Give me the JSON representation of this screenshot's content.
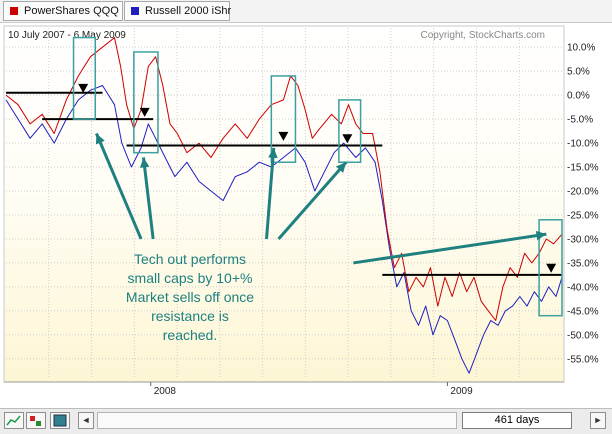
{
  "legend": {
    "series": [
      {
        "label": "PowerShares QQQ",
        "color": "#cc0000"
      },
      {
        "label": "Russell 2000 iShr",
        "color": "#1f1fbf"
      }
    ]
  },
  "chart_data": {
    "type": "line",
    "title": "10 July 2007 - 6 May 2009",
    "watermark": "Copyright, StockCharts.com",
    "ylim": [
      -59,
      14
    ],
    "yticks": [
      "10.0%",
      "5.0%",
      "0.0%",
      "-5.0%",
      "-10.0%",
      "-15.0%",
      "-20.0%",
      "-25.0%",
      "-30.0%",
      "-35.0%",
      "-40.0%",
      "-45.0%",
      "-50.0%",
      "-55.0%"
    ],
    "ytick_values": [
      10,
      5,
      0,
      -5,
      -10,
      -15,
      -20,
      -25,
      -30,
      -35,
      -40,
      -45,
      -50,
      -55
    ],
    "xlabels": [
      "2008",
      "2009"
    ],
    "xrange": [
      0,
      461
    ],
    "xlabel_positions": [
      120,
      366
    ],
    "series": [
      {
        "name": "PowerShares QQQ",
        "color": "#cc0000",
        "points": [
          [
            0,
            0
          ],
          [
            10,
            -2
          ],
          [
            20,
            -6
          ],
          [
            30,
            -4
          ],
          [
            40,
            -8
          ],
          [
            50,
            -1
          ],
          [
            60,
            4
          ],
          [
            70,
            8
          ],
          [
            80,
            10
          ],
          [
            90,
            12
          ],
          [
            95,
            6
          ],
          [
            100,
            -2
          ],
          [
            106,
            -7
          ],
          [
            112,
            -3
          ],
          [
            118,
            6
          ],
          [
            124,
            8
          ],
          [
            130,
            2
          ],
          [
            136,
            -6
          ],
          [
            142,
            -8
          ],
          [
            150,
            -12
          ],
          [
            160,
            -10
          ],
          [
            170,
            -13
          ],
          [
            180,
            -9
          ],
          [
            190,
            -6
          ],
          [
            200,
            -9
          ],
          [
            210,
            -5
          ],
          [
            220,
            -2
          ],
          [
            230,
            -1
          ],
          [
            236,
            4
          ],
          [
            242,
            2
          ],
          [
            248,
            -3
          ],
          [
            254,
            -9
          ],
          [
            260,
            -7
          ],
          [
            270,
            -4
          ],
          [
            278,
            -6
          ],
          [
            284,
            -2
          ],
          [
            290,
            -6
          ],
          [
            296,
            -8
          ],
          [
            304,
            -8
          ],
          [
            310,
            -16
          ],
          [
            316,
            -28
          ],
          [
            322,
            -36
          ],
          [
            328,
            -33
          ],
          [
            334,
            -41
          ],
          [
            340,
            -38
          ],
          [
            346,
            -40
          ],
          [
            352,
            -36
          ],
          [
            358,
            -44
          ],
          [
            364,
            -38
          ],
          [
            370,
            -42
          ],
          [
            376,
            -37
          ],
          [
            382,
            -41
          ],
          [
            388,
            -38
          ],
          [
            394,
            -43
          ],
          [
            400,
            -45
          ],
          [
            406,
            -47
          ],
          [
            412,
            -40
          ],
          [
            418,
            -36
          ],
          [
            424,
            -38
          ],
          [
            430,
            -33
          ],
          [
            436,
            -35
          ],
          [
            442,
            -33
          ],
          [
            448,
            -30
          ],
          [
            454,
            -31
          ],
          [
            461,
            -29
          ]
        ]
      },
      {
        "name": "Russell 2000 iShr",
        "color": "#1f1fbf",
        "points": [
          [
            0,
            -1
          ],
          [
            10,
            -5
          ],
          [
            20,
            -9
          ],
          [
            30,
            -6
          ],
          [
            40,
            -10
          ],
          [
            50,
            -5
          ],
          [
            60,
            -1
          ],
          [
            70,
            1
          ],
          [
            80,
            2
          ],
          [
            90,
            -2
          ],
          [
            96,
            -10
          ],
          [
            104,
            -15
          ],
          [
            112,
            -11
          ],
          [
            118,
            -6
          ],
          [
            124,
            -9
          ],
          [
            132,
            -13
          ],
          [
            140,
            -17
          ],
          [
            150,
            -14
          ],
          [
            160,
            -18
          ],
          [
            170,
            -20
          ],
          [
            180,
            -22
          ],
          [
            190,
            -17
          ],
          [
            200,
            -16
          ],
          [
            210,
            -14
          ],
          [
            220,
            -15
          ],
          [
            230,
            -13
          ],
          [
            240,
            -11
          ],
          [
            248,
            -14
          ],
          [
            256,
            -20
          ],
          [
            264,
            -16
          ],
          [
            272,
            -12
          ],
          [
            280,
            -10
          ],
          [
            290,
            -13
          ],
          [
            298,
            -11
          ],
          [
            306,
            -14
          ],
          [
            312,
            -22
          ],
          [
            318,
            -32
          ],
          [
            324,
            -40
          ],
          [
            330,
            -37
          ],
          [
            336,
            -45
          ],
          [
            342,
            -48
          ],
          [
            348,
            -44
          ],
          [
            354,
            -50
          ],
          [
            360,
            -46
          ],
          [
            366,
            -47
          ],
          [
            372,
            -51
          ],
          [
            378,
            -55
          ],
          [
            384,
            -58
          ],
          [
            390,
            -54
          ],
          [
            396,
            -50
          ],
          [
            402,
            -47
          ],
          [
            408,
            -48
          ],
          [
            414,
            -45
          ],
          [
            420,
            -44
          ],
          [
            426,
            -42
          ],
          [
            432,
            -44
          ],
          [
            438,
            -41
          ],
          [
            444,
            -43
          ],
          [
            450,
            -40
          ],
          [
            456,
            -42
          ],
          [
            461,
            -38
          ]
        ]
      }
    ],
    "resistance_lines": [
      {
        "x": [
          0,
          80
        ],
        "y": 0.5
      },
      {
        "x": [
          30,
          122
        ],
        "y": -5.0
      },
      {
        "x": [
          100,
          312
        ],
        "y": -10.5
      },
      {
        "x": [
          312,
          461
        ],
        "y": -37.5
      }
    ],
    "highlight_boxes": [
      {
        "x": [
          56,
          74
        ],
        "y": [
          12,
          -5
        ]
      },
      {
        "x": [
          106,
          126
        ],
        "y": [
          9,
          -12
        ]
      },
      {
        "x": [
          220,
          240
        ],
        "y": [
          4,
          -14
        ]
      },
      {
        "x": [
          276,
          294
        ],
        "y": [
          -1,
          -14
        ]
      },
      {
        "x": [
          442,
          461
        ],
        "y": [
          -26,
          -46
        ]
      }
    ],
    "markers": [
      {
        "x": 64,
        "y": 1.5
      },
      {
        "x": 115,
        "y": -3.5
      },
      {
        "x": 230,
        "y": -8.5
      },
      {
        "x": 283,
        "y": -9.0
      },
      {
        "x": 452,
        "y": -36.0
      }
    ],
    "annotation": {
      "lines": [
        "Tech out performs",
        "small caps by 10+%",
        "Market sells off once",
        "resistance is",
        "reached."
      ],
      "arrows": [
        [
          [
            112,
            -30
          ],
          [
            75,
            -8
          ]
        ],
        [
          [
            122,
            -30
          ],
          [
            114,
            -13
          ]
        ],
        [
          [
            216,
            -30
          ],
          [
            222,
            -11
          ]
        ],
        [
          [
            226,
            -30
          ],
          [
            282,
            -14
          ]
        ],
        [
          [
            288,
            -35
          ],
          [
            448,
            -29
          ]
        ]
      ]
    }
  },
  "toolbar": {
    "days": "461 days",
    "left_arrow": "◄",
    "right_arrow": "►"
  }
}
